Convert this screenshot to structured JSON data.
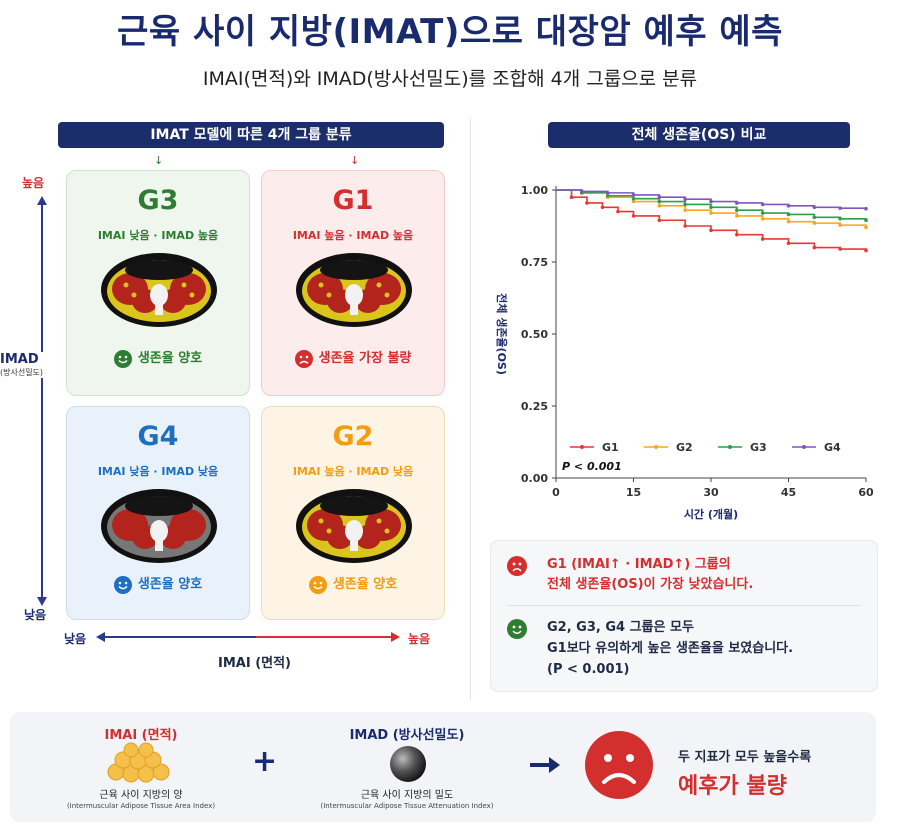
{
  "header": {
    "title": "근육 사이 지방(IMAT)으로 대장암 예후 예측",
    "subtitle": "IMAI(면적)와 IMAD(방사선밀도)를 조합해 4개 그룹으로 분류"
  },
  "left_panel": {
    "pill": "IMAT 모델에 따른 4개 그룹 분류",
    "y_axis": {
      "high": "높음",
      "low": "낮음",
      "name": "IMAD",
      "sub": "(방사선밀도)"
    },
    "x_axis": {
      "low": "낮음",
      "high": "높음",
      "name": "IMAI (면적)"
    },
    "groups": [
      {
        "id": "G3",
        "desc": "IMAI 낮음 · IMAD 높음",
        "status": "생존율 양호",
        "color": "#2e7d32"
      },
      {
        "id": "G1",
        "desc": "IMAI 높음 · IMAD 높음",
        "status": "생존율 가장 불량",
        "color": "#d32f2f"
      },
      {
        "id": "G4",
        "desc": "IMAI 낮음 · IMAD 낮음",
        "status": "생존율 양호",
        "color": "#1e6fbf"
      },
      {
        "id": "G2",
        "desc": "IMAI 높음 · IMAD 낮음",
        "status": "생존율 양호",
        "color": "#f39c12"
      }
    ]
  },
  "right_panel": {
    "pill": "전체 생존율(OS) 비교",
    "notes": [
      {
        "line1": "G1 (IMAI↑ · IMAD↑) 그룹의",
        "line2": "전체 생존율(OS)이 가장 낮았습니다."
      },
      {
        "line1": "G2, G3, G4 그룹은 모두",
        "line2": "G1보다 유의하게 높은 생존율을 보였습니다.",
        "line3": "(P < 0.001)"
      }
    ]
  },
  "chart_data": {
    "type": "line",
    "xlabel": "시간 (개월)",
    "ylabel": "전체 생존율(OS)",
    "xlim": [
      0,
      60
    ],
    "ylim": [
      0,
      1
    ],
    "xticks": [
      0,
      15,
      30,
      45,
      60
    ],
    "yticks": [
      "0.00",
      "0.25",
      "0.50",
      "0.75",
      "1.00"
    ],
    "annotation": "P < 0.001",
    "legend_position": "bottom",
    "series": [
      {
        "name": "G1",
        "color": "#e53935",
        "x": [
          0,
          3,
          6,
          9,
          12,
          15,
          20,
          25,
          30,
          35,
          40,
          45,
          50,
          55,
          60
        ],
        "y": [
          1.0,
          0.975,
          0.955,
          0.94,
          0.925,
          0.91,
          0.895,
          0.875,
          0.86,
          0.845,
          0.83,
          0.815,
          0.8,
          0.795,
          0.79
        ]
      },
      {
        "name": "G2",
        "color": "#f5a623",
        "x": [
          0,
          5,
          10,
          15,
          20,
          25,
          30,
          35,
          40,
          45,
          50,
          55,
          60
        ],
        "y": [
          1.0,
          0.99,
          0.975,
          0.96,
          0.945,
          0.93,
          0.92,
          0.91,
          0.9,
          0.89,
          0.885,
          0.878,
          0.87
        ]
      },
      {
        "name": "G3",
        "color": "#2e9e49",
        "x": [
          0,
          5,
          10,
          15,
          20,
          25,
          30,
          35,
          40,
          45,
          50,
          55,
          60
        ],
        "y": [
          1.0,
          0.99,
          0.98,
          0.97,
          0.96,
          0.95,
          0.94,
          0.93,
          0.92,
          0.915,
          0.905,
          0.9,
          0.895
        ]
      },
      {
        "name": "G4",
        "color": "#7e57c2",
        "x": [
          0,
          5,
          10,
          15,
          20,
          25,
          30,
          35,
          40,
          45,
          50,
          55,
          60
        ],
        "y": [
          1.0,
          0.995,
          0.99,
          0.983,
          0.975,
          0.968,
          0.96,
          0.955,
          0.95,
          0.945,
          0.94,
          0.937,
          0.935
        ]
      }
    ]
  },
  "bottom": {
    "imai": {
      "title": "IMAI (면적)",
      "desc": "근육 사이 지방의 양",
      "en": "(Intermuscular Adipose Tissue Area Index)"
    },
    "plus": "+",
    "imad": {
      "title": "IMAD (방사선밀도)",
      "desc": "근육 사이 지방의 밀도",
      "en": "(Intermuscular Adipose Tissue Attenuation Index)"
    },
    "conclusion": {
      "line1": "두 지표가 모두 높을수록",
      "line2": "예후가 불량"
    }
  }
}
